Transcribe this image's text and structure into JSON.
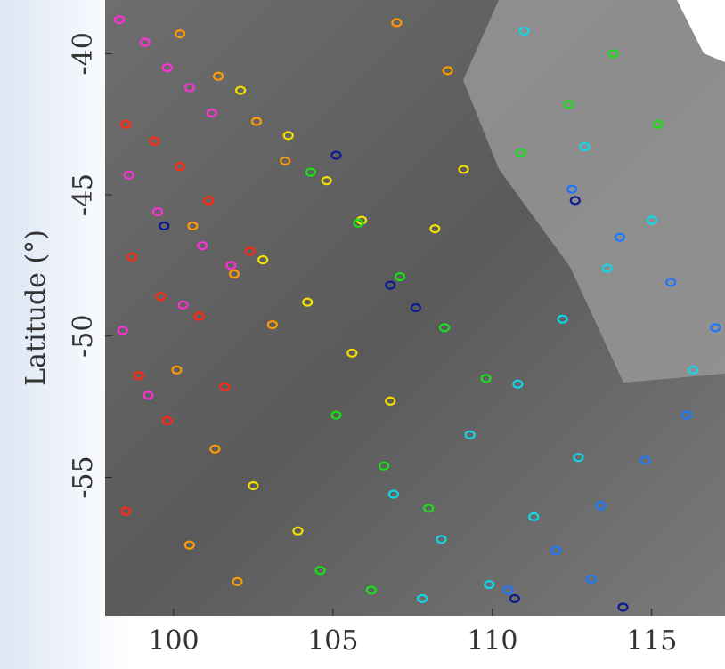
{
  "chart_data": {
    "type": "scatter",
    "y_label": "Latitude (°)",
    "xlim": [
      97.85,
      117.3
    ],
    "ylim": [
      -59.9,
      -38.1
    ],
    "xticks": [
      100,
      105,
      110,
      115
    ],
    "yticks": [
      -40,
      -45,
      -50,
      -55
    ],
    "grid": false,
    "series": [
      {
        "name": "magenta",
        "color": "#ff30d8",
        "x": [
          98.3,
          99.1,
          99.8,
          100.5,
          101.2,
          98.6,
          99.5,
          100.9,
          101.8,
          98.4,
          99.2,
          100.3
        ],
        "y": [
          -38.8,
          -39.6,
          -40.5,
          -41.2,
          -42.1,
          -44.3,
          -45.6,
          -46.8,
          -47.5,
          -49.8,
          -52.1,
          -48.9
        ]
      },
      {
        "name": "red",
        "color": "#ff2a10",
        "x": [
          98.5,
          99.4,
          100.2,
          101.1,
          98.7,
          99.6,
          100.8,
          98.9,
          99.8,
          98.5,
          101.6,
          102.4
        ],
        "y": [
          -42.5,
          -43.1,
          -44.0,
          -45.2,
          -47.2,
          -48.6,
          -49.3,
          -51.4,
          -53.0,
          -56.2,
          -51.8,
          -47.0
        ]
      },
      {
        "name": "orange",
        "color": "#ff9a00",
        "x": [
          100.2,
          101.4,
          102.6,
          103.5,
          100.6,
          101.9,
          103.1,
          100.1,
          101.3,
          100.5,
          102.0,
          107.0,
          108.6
        ],
        "y": [
          -39.3,
          -40.8,
          -42.4,
          -43.8,
          -46.1,
          -47.8,
          -49.6,
          -51.2,
          -54.0,
          -57.4,
          -58.7,
          -38.9,
          -40.6
        ]
      },
      {
        "name": "yellow",
        "color": "#f5e000",
        "x": [
          102.1,
          103.6,
          104.8,
          105.9,
          102.8,
          104.2,
          105.6,
          102.5,
          103.9,
          106.8,
          108.2,
          109.1
        ],
        "y": [
          -41.3,
          -42.9,
          -44.5,
          -45.9,
          -47.3,
          -48.8,
          -50.6,
          -55.3,
          -56.9,
          -52.3,
          -46.2,
          -44.1
        ]
      },
      {
        "name": "green",
        "color": "#18e018",
        "x": [
          104.3,
          105.8,
          107.1,
          108.5,
          109.8,
          105.1,
          106.6,
          108.0,
          104.6,
          106.2,
          110.9,
          112.4,
          113.8,
          115.2
        ],
        "y": [
          -44.2,
          -46.0,
          -47.9,
          -49.7,
          -51.5,
          -52.8,
          -54.6,
          -56.1,
          -58.3,
          -59.0,
          -43.5,
          -41.8,
          -40.0,
          -42.5
        ]
      },
      {
        "name": "cyan",
        "color": "#10d8e8",
        "x": [
          106.9,
          108.4,
          109.9,
          111.3,
          112.7,
          107.8,
          109.3,
          110.8,
          112.2,
          113.6,
          115.0,
          116.3,
          111.0,
          112.9
        ],
        "y": [
          -55.6,
          -57.2,
          -58.8,
          -56.4,
          -54.3,
          -59.3,
          -53.5,
          -51.7,
          -49.4,
          -47.6,
          -45.9,
          -51.2,
          -39.2,
          -43.3
        ]
      },
      {
        "name": "blue",
        "color": "#1a78ff",
        "x": [
          110.5,
          112.0,
          113.4,
          114.8,
          116.1,
          112.5,
          114.0,
          115.6,
          117.0,
          113.1
        ],
        "y": [
          -59.0,
          -57.6,
          -56.0,
          -54.4,
          -52.8,
          -44.8,
          -46.5,
          -48.1,
          -49.7,
          -58.6
        ]
      },
      {
        "name": "navy",
        "color": "#0a1a90",
        "x": [
          99.7,
          105.1,
          106.8,
          107.6,
          110.7,
          114.1,
          112.6
        ],
        "y": [
          -46.1,
          -43.6,
          -48.2,
          -49.0,
          -59.3,
          -59.6,
          -45.2
        ]
      }
    ]
  }
}
